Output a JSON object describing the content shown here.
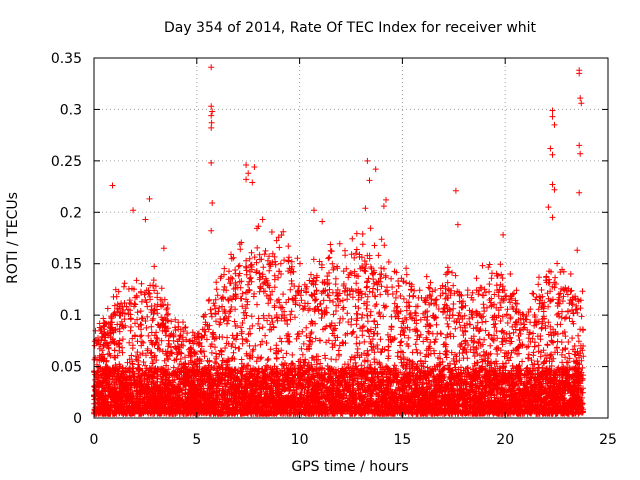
{
  "chart_data": {
    "type": "scatter",
    "title": "Day 354 of 2014, Rate Of TEC Index for receiver whit",
    "xlabel": "GPS time / hours",
    "ylabel": "ROTI / TECUs",
    "xlim": [
      0,
      25
    ],
    "ylim": [
      0,
      0.35
    ],
    "xticks": [
      0,
      5,
      10,
      15,
      20,
      25
    ],
    "yticks": [
      0,
      0.05,
      0.1,
      0.15,
      0.2,
      0.25,
      0.3,
      0.35
    ],
    "grid": true,
    "marker": "+",
    "color": "#ff0000",
    "data_extent_hours": [
      0,
      23.8
    ],
    "density_profile": {
      "hours": [
        0,
        1,
        2,
        3,
        4,
        5,
        6,
        7,
        8,
        9,
        10,
        11,
        12,
        13,
        14,
        15,
        16,
        17,
        18,
        19,
        20,
        21,
        22,
        23,
        23.8
      ],
      "typical_max": [
        0.07,
        0.1,
        0.11,
        0.12,
        0.08,
        0.07,
        0.11,
        0.14,
        0.15,
        0.15,
        0.13,
        0.13,
        0.14,
        0.15,
        0.15,
        0.13,
        0.11,
        0.12,
        0.11,
        0.12,
        0.12,
        0.09,
        0.13,
        0.12,
        0.1
      ]
    },
    "outliers": [
      {
        "x": 0.9,
        "y": 0.226
      },
      {
        "x": 1.9,
        "y": 0.202
      },
      {
        "x": 2.7,
        "y": 0.213
      },
      {
        "x": 2.5,
        "y": 0.193
      },
      {
        "x": 3.4,
        "y": 0.165
      },
      {
        "x": 5.7,
        "y": 0.341
      },
      {
        "x": 5.7,
        "y": 0.303
      },
      {
        "x": 5.75,
        "y": 0.298
      },
      {
        "x": 5.7,
        "y": 0.294
      },
      {
        "x": 5.72,
        "y": 0.287
      },
      {
        "x": 5.7,
        "y": 0.282
      },
      {
        "x": 5.7,
        "y": 0.248
      },
      {
        "x": 5.75,
        "y": 0.209
      },
      {
        "x": 5.7,
        "y": 0.182
      },
      {
        "x": 7.4,
        "y": 0.246
      },
      {
        "x": 7.5,
        "y": 0.238
      },
      {
        "x": 7.4,
        "y": 0.232
      },
      {
        "x": 7.8,
        "y": 0.244
      },
      {
        "x": 7.7,
        "y": 0.229
      },
      {
        "x": 8.2,
        "y": 0.193
      },
      {
        "x": 9.2,
        "y": 0.181
      },
      {
        "x": 10.7,
        "y": 0.202
      },
      {
        "x": 11.1,
        "y": 0.191
      },
      {
        "x": 13.3,
        "y": 0.25
      },
      {
        "x": 13.4,
        "y": 0.231
      },
      {
        "x": 13.2,
        "y": 0.204
      },
      {
        "x": 13.7,
        "y": 0.242
      },
      {
        "x": 14.2,
        "y": 0.212
      },
      {
        "x": 14.1,
        "y": 0.206
      },
      {
        "x": 17.6,
        "y": 0.221
      },
      {
        "x": 17.7,
        "y": 0.188
      },
      {
        "x": 19.9,
        "y": 0.178
      },
      {
        "x": 22.3,
        "y": 0.299
      },
      {
        "x": 22.3,
        "y": 0.293
      },
      {
        "x": 22.4,
        "y": 0.285
      },
      {
        "x": 22.2,
        "y": 0.262
      },
      {
        "x": 22.3,
        "y": 0.256
      },
      {
        "x": 22.3,
        "y": 0.227
      },
      {
        "x": 22.4,
        "y": 0.222
      },
      {
        "x": 22.1,
        "y": 0.205
      },
      {
        "x": 22.3,
        "y": 0.195
      },
      {
        "x": 23.6,
        "y": 0.338
      },
      {
        "x": 23.6,
        "y": 0.335
      },
      {
        "x": 23.65,
        "y": 0.311
      },
      {
        "x": 23.7,
        "y": 0.306
      },
      {
        "x": 23.6,
        "y": 0.265
      },
      {
        "x": 23.65,
        "y": 0.257
      },
      {
        "x": 23.6,
        "y": 0.219
      },
      {
        "x": 23.5,
        "y": 0.163
      }
    ]
  }
}
